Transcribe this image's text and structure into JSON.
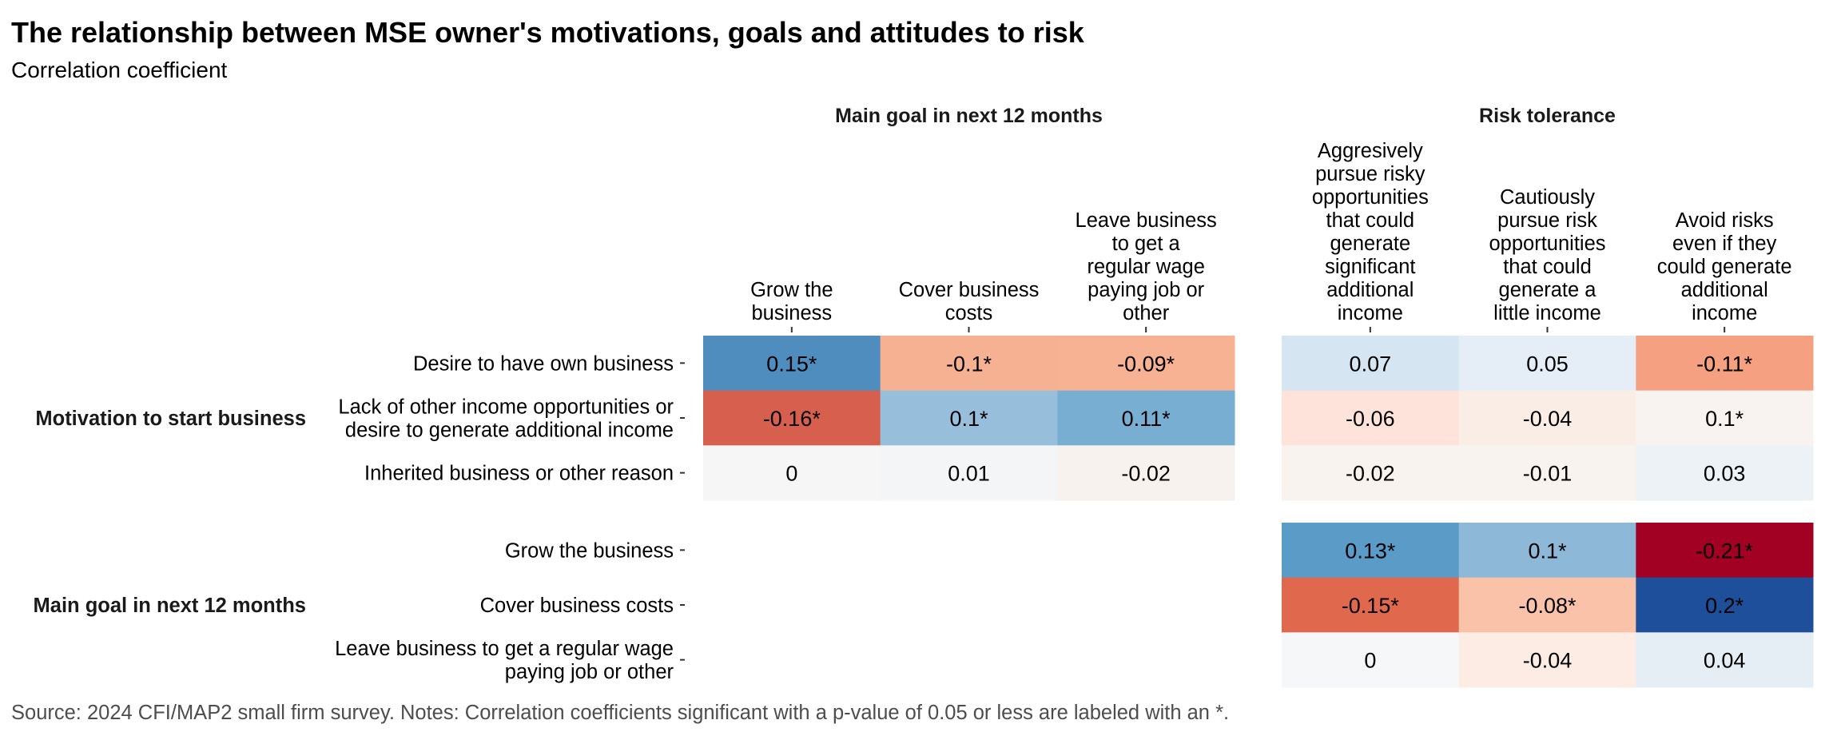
{
  "chart_data": {
    "type": "heatmap",
    "title": "The relationship between MSE owner's motivations, goals and attitudes to risk",
    "subtitle": "Correlation coefficient",
    "source": "Source: 2024 CFI/MAP2 small firm survey. Notes: Correlation coefficients significant with a p-value of 0.05 or less are labeled with an *.",
    "color_scale": {
      "palette": "RdBu diverging",
      "negative_color": "#a30123",
      "neutral_color": "#f6f7f8",
      "positive_color": "#1d4f9b",
      "range": [
        -0.21,
        0.21
      ]
    },
    "column_groups": [
      {
        "label": "Main goal in next 12 months",
        "columns": [
          [
            "Grow the",
            "business"
          ],
          [
            "Cover business",
            "costs"
          ],
          [
            "Leave business",
            "to get a",
            "regular wage",
            "paying job or",
            "other"
          ]
        ]
      },
      {
        "label": "Risk tolerance",
        "columns": [
          [
            "Aggresively",
            "pursue risky",
            "opportunities",
            "that could",
            "generate",
            "significant",
            "additional",
            "income"
          ],
          [
            "Cautiously",
            "pursue risk",
            "opportunities",
            "that could",
            "generate a",
            "little income"
          ],
          [
            "Avoid risks",
            "even if they",
            "could generate",
            "additional",
            "income"
          ]
        ]
      }
    ],
    "row_groups": [
      {
        "label": "Motivation to start business",
        "rows": [
          [
            "Desire to have own business"
          ],
          [
            "Lack of other income opportunities or",
            "desire to generate additional income"
          ],
          [
            "Inherited business or other reason"
          ]
        ]
      },
      {
        "label": "Main goal in next 12 months",
        "rows": [
          [
            "Grow the business"
          ],
          [
            "Cover business costs"
          ],
          [
            "Leave business to get a regular wage",
            "paying job or other"
          ]
        ]
      }
    ],
    "panels": [
      {
        "row_group": 0,
        "col_group": 0,
        "values": [
          [
            0.15,
            -0.1,
            -0.09
          ],
          [
            -0.16,
            0.1,
            0.11
          ],
          [
            0,
            0.01,
            -0.02
          ]
        ],
        "labels": [
          [
            "0.15*",
            "-0.1*",
            "-0.09*"
          ],
          [
            "-0.16*",
            "0.1*",
            "0.11*"
          ],
          [
            "0",
            "0.01",
            "-0.02"
          ]
        ],
        "colors": [
          [
            "#4f8dbe",
            "#f6b092",
            "#f7b294"
          ],
          [
            "#d6604d",
            "#97bfdc",
            "#78aed2"
          ],
          [
            "#f6f6f7",
            "#f3f5f7",
            "#f8f2ee"
          ]
        ]
      },
      {
        "row_group": 0,
        "col_group": 1,
        "values": [
          [
            0.07,
            0.05,
            -0.11
          ],
          [
            -0.06,
            -0.04,
            0.1
          ],
          [
            -0.02,
            -0.01,
            0.03
          ]
        ],
        "labels": [
          [
            "0.07",
            "0.05",
            "-0.11*"
          ],
          [
            "-0.06",
            "-0.04",
            "0.1*"
          ],
          [
            "-0.02",
            "-0.01",
            "0.03"
          ]
        ],
        "colors": [
          [
            "#d5e5f1",
            "#e5eef6",
            "#f4a081"
          ],
          [
            "#fde3d9",
            "#faede6",
            "#f8f3f0"
          ],
          [
            "#f8f3ef",
            "#f8f3ef",
            "#edf2f6"
          ]
        ]
      },
      {
        "row_group": 1,
        "col_group": 1,
        "values": [
          [
            0.13,
            0.1,
            -0.21
          ],
          [
            -0.15,
            -0.08,
            0.2
          ],
          [
            0,
            -0.04,
            0.04
          ]
        ],
        "labels": [
          [
            "0.13*",
            "0.1*",
            "-0.21*"
          ],
          [
            "-0.15*",
            "-0.08*",
            "0.2*"
          ],
          [
            "0",
            "-0.04",
            "0.04"
          ]
        ],
        "colors": [
          [
            "#5b9bc8",
            "#8db8d8",
            "#a30123"
          ],
          [
            "#e0684d",
            "#f9c2a9",
            "#1d4f9b"
          ],
          [
            "#f6f7f8",
            "#fcece4",
            "#e6eef5"
          ]
        ]
      }
    ]
  }
}
